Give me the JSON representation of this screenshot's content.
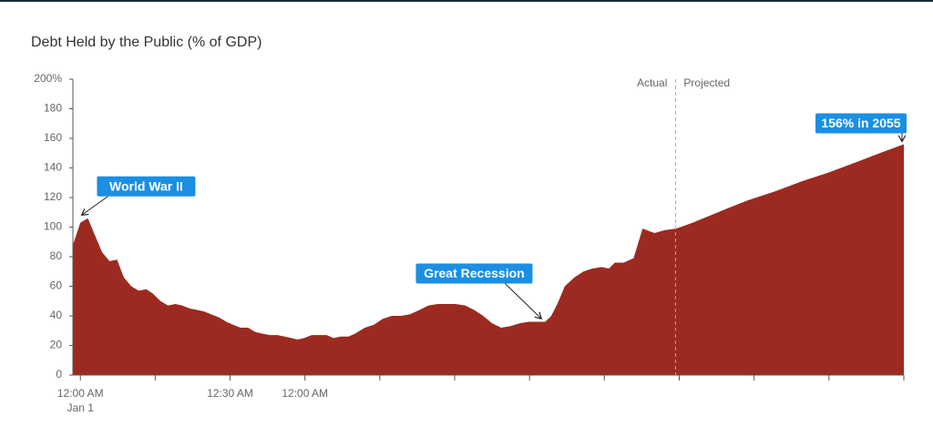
{
  "chart_data": {
    "type": "area",
    "title": "Debt Held by the Public (% of GDP)",
    "color": "#9c2a20",
    "x": [
      -0.1,
      0,
      0.1,
      0.19,
      0.29,
      0.39,
      0.49,
      0.58,
      0.68,
      0.78,
      0.88,
      0.97,
      1.07,
      1.17,
      1.27,
      1.36,
      1.46,
      1.56,
      1.65,
      1.75,
      1.85,
      1.95,
      2.04,
      2.14,
      2.24,
      2.34,
      2.43,
      2.53,
      2.63,
      2.73,
      2.82,
      2.9,
      2.99,
      3.09,
      3.19,
      3.29,
      3.38,
      3.48,
      3.58,
      3.67,
      3.8,
      3.92,
      4.04,
      4.16,
      4.28,
      4.4,
      4.53,
      4.65,
      4.77,
      4.89,
      5.01,
      5.14,
      5.26,
      5.38,
      5.5,
      5.62,
      5.74,
      5.87,
      5.99,
      6.11,
      6.21,
      6.29,
      6.38,
      6.47,
      6.6,
      6.72,
      6.84,
      6.96,
      7.06,
      7.14,
      7.26,
      7.39,
      7.51,
      7.67,
      7.81,
      7.96,
      8.18,
      8.42,
      8.66,
      8.91,
      9.27,
      9.64,
      10.0,
      10.37,
      10.73,
      11.0
    ],
    "values": [
      88,
      103,
      106,
      95,
      83,
      77,
      78,
      66,
      60,
      57,
      58,
      55,
      50,
      47,
      48,
      47,
      45,
      44,
      43,
      41,
      39,
      36,
      34,
      32,
      32,
      29,
      28,
      27,
      27,
      26,
      25,
      24,
      25,
      27,
      27,
      27,
      25,
      26,
      26,
      28,
      32,
      34,
      38,
      40,
      40,
      41,
      44,
      47,
      48,
      48,
      48,
      47,
      44,
      40,
      35,
      32,
      33,
      35,
      36,
      36,
      36,
      40,
      49,
      60,
      66,
      70,
      72,
      73,
      72,
      76,
      76,
      79,
      99,
      96,
      98,
      99,
      103,
      108,
      113,
      118,
      124,
      131,
      137,
      144,
      151,
      156
    ],
    "xlim": [
      -0.1,
      11
    ],
    "xticks": [
      {
        "value": 0,
        "label": [
          "12:00 AM",
          "Jan 1"
        ]
      },
      {
        "value": 1,
        "label": null
      },
      {
        "value": 2,
        "label": [
          "12:30 AM"
        ]
      },
      {
        "value": 3,
        "label": [
          "12:00 AM"
        ]
      },
      {
        "value": 4,
        "label": null
      },
      {
        "value": 5,
        "label": null
      },
      {
        "value": 6,
        "label": null
      },
      {
        "value": 7,
        "label": null
      },
      {
        "value": 8,
        "label": null
      },
      {
        "value": 9,
        "label": null
      },
      {
        "value": 10,
        "label": null
      },
      {
        "value": 11,
        "label": null
      }
    ],
    "ylim": [
      0,
      200
    ],
    "yticks": [
      0,
      20,
      40,
      60,
      80,
      100,
      120,
      140,
      160,
      180,
      {
        "value": 200,
        "label": "200%"
      }
    ],
    "divider": {
      "x": 7.95,
      "left_label": "Actual",
      "right_label": "Projected"
    },
    "annotations": [
      {
        "text": "World War II",
        "x": 0.1,
        "y": 106
      },
      {
        "text": "Great Recession",
        "x": 6.21,
        "y": 36
      },
      {
        "text": "156% in 2055",
        "x": 11.0,
        "y": 156
      }
    ]
  }
}
